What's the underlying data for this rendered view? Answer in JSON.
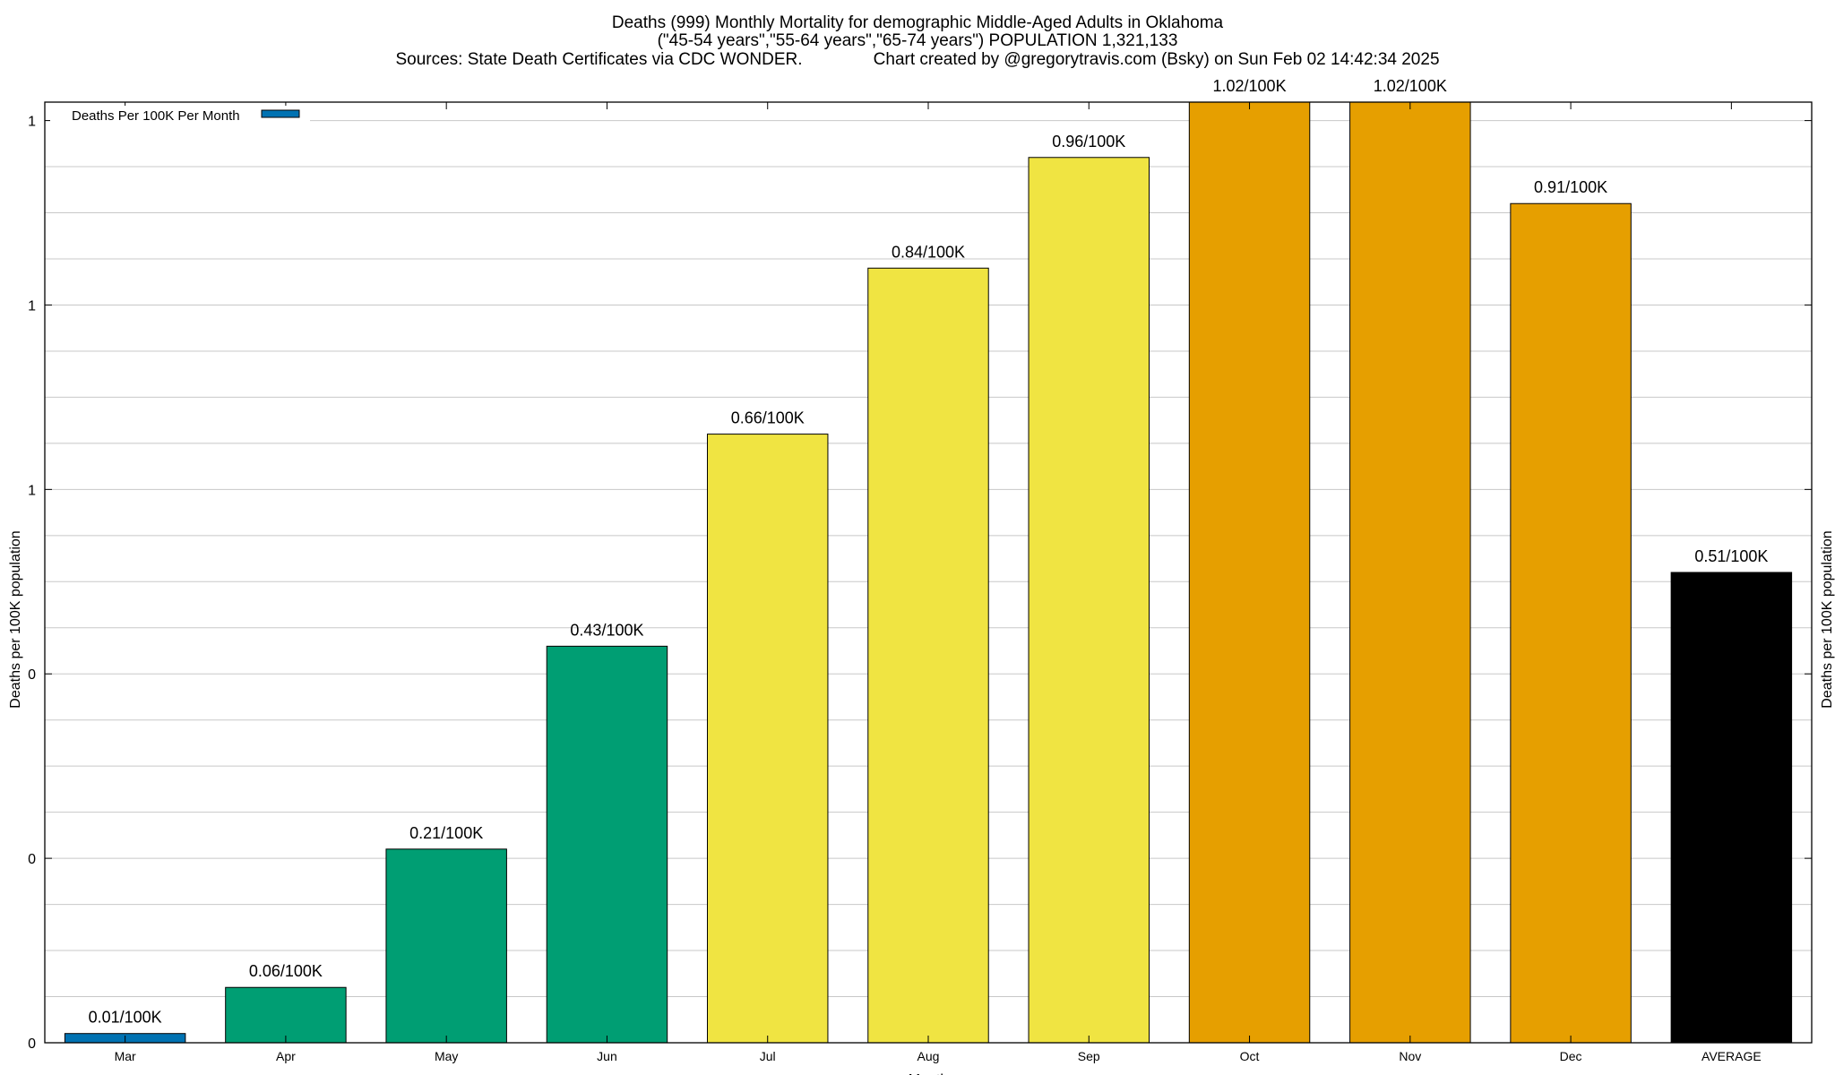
{
  "chart_data": {
    "type": "bar",
    "title_lines": [
      "Deaths (999) Monthly Mortality for demographic Middle-Aged Adults in Oklahoma",
      "(\"45-54 years\",\"55-64 years\",\"65-74 years\") POPULATION 1,321,133",
      "Sources: State Death Certificates via CDC WONDER.               Chart created by @gregorytravis.com (Bsky) on Sun Feb 02 14:42:34 2025"
    ],
    "xlabel": "Month",
    "ylabel": "Deaths per 100K population",
    "ylabel_right": "Deaths per 100K population",
    "categories": [
      "Mar",
      "Apr",
      "May",
      "Jun",
      "Jul",
      "Aug",
      "Sep",
      "Oct",
      "Nov",
      "Dec",
      "AVERAGE"
    ],
    "series": [
      {
        "name": "Deaths Per 100K Per Month",
        "values": [
          0.01,
          0.06,
          0.21,
          0.43,
          0.66,
          0.84,
          0.96,
          1.02,
          1.02,
          0.91,
          0.51
        ],
        "labels": [
          "0.01/100K",
          "0.06/100K",
          "0.21/100K",
          "0.43/100K",
          "0.66/100K",
          "0.84/100K",
          "0.96/100K",
          "1.02/100K",
          "1.02/100K",
          "0.91/100K",
          "0.51/100K"
        ],
        "colors": [
          "#0072b2",
          "#009e73",
          "#009e73",
          "#009e73",
          "#f0e442",
          "#f0e442",
          "#f0e442",
          "#e69f00",
          "#e69f00",
          "#e69f00",
          "#000000"
        ]
      }
    ],
    "legend_color": "#0072b2",
    "ylim": [
      0,
      1.02
    ],
    "yticks": [
      0,
      0.2,
      0.4,
      0.6,
      0.8,
      1.0
    ],
    "ytick_labels": [
      "0",
      "0",
      "0",
      "1",
      "1",
      "1"
    ],
    "grid": true,
    "legend_position": "top-left"
  }
}
